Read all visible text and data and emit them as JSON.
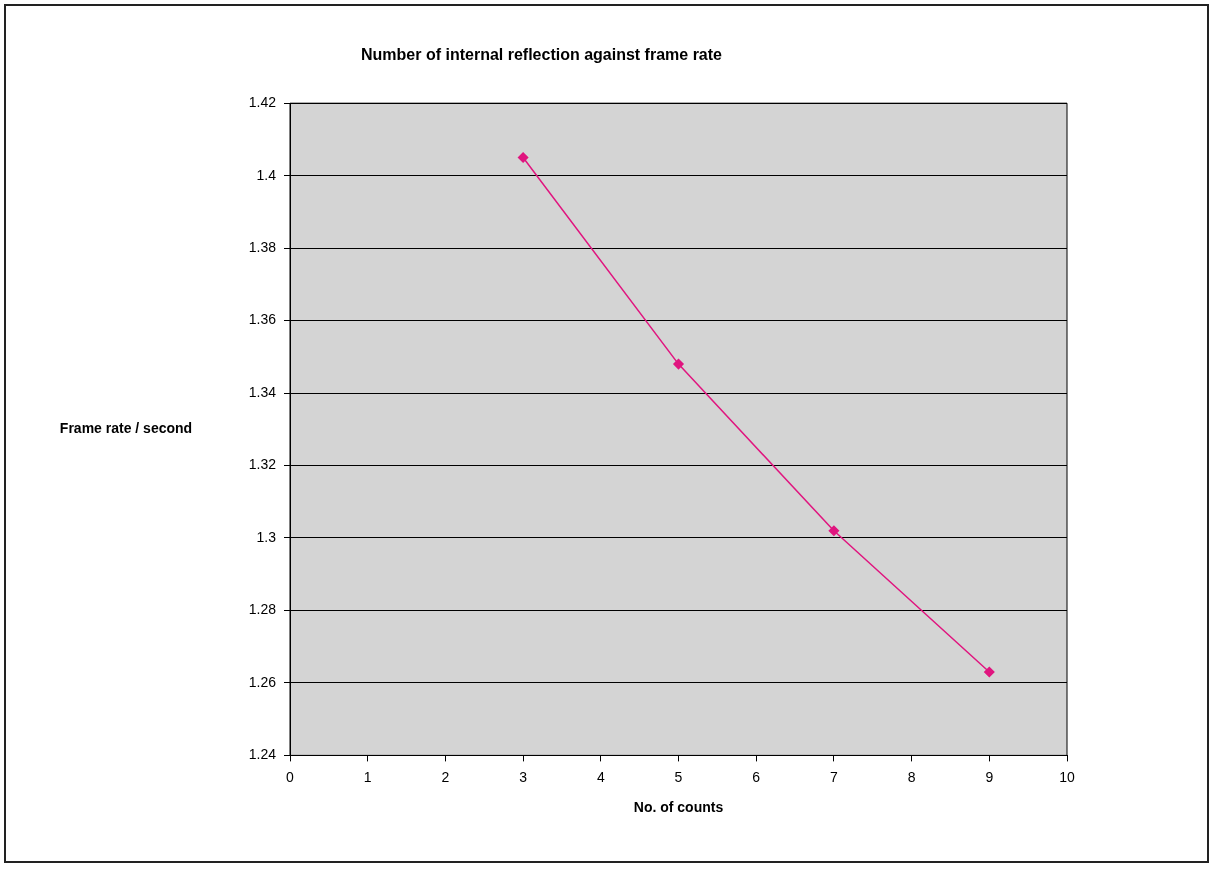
{
  "chart_data": {
    "type": "line",
    "title": "Number of internal reflection against frame rate",
    "xlabel": "No. of counts",
    "ylabel": "Frame rate / second",
    "x": [
      3,
      5,
      7,
      9
    ],
    "series": [
      {
        "color": "#e0157f",
        "values": [
          1.405,
          1.348,
          1.302,
          1.263
        ]
      }
    ],
    "xlim": [
      0,
      10
    ],
    "xticks": [
      0,
      1,
      2,
      3,
      4,
      5,
      6,
      7,
      8,
      9,
      10
    ],
    "ylim": [
      1.24,
      1.42
    ],
    "yticks": [
      1.24,
      1.26,
      1.28,
      1.3,
      1.32,
      1.34,
      1.36,
      1.38,
      1.4,
      1.42
    ],
    "grid": "y",
    "legend": false,
    "marker": "diamond",
    "line_style": "solid"
  }
}
